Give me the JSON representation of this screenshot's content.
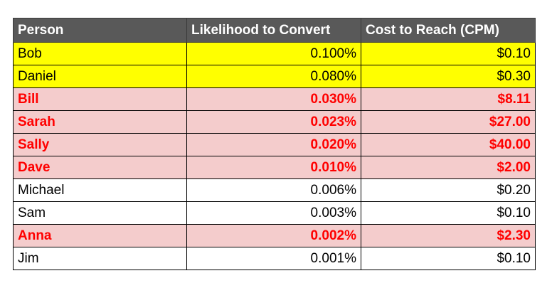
{
  "table": {
    "headers": {
      "person": "Person",
      "likelihood": "Likelihood to Convert",
      "cost": "Cost to Reach (CPM)"
    },
    "rows": [
      {
        "person": "Bob",
        "likelihood": "0.100%",
        "cost": "$0.10",
        "highlight": "yellow"
      },
      {
        "person": "Daniel",
        "likelihood": "0.080%",
        "cost": "$0.30",
        "highlight": "yellow"
      },
      {
        "person": "Bill",
        "likelihood": "0.030%",
        "cost": "$8.11",
        "highlight": "pink"
      },
      {
        "person": "Sarah",
        "likelihood": "0.023%",
        "cost": "$27.00",
        "highlight": "pink"
      },
      {
        "person": "Sally",
        "likelihood": "0.020%",
        "cost": "$40.00",
        "highlight": "pink"
      },
      {
        "person": "Dave",
        "likelihood": "0.010%",
        "cost": "$2.00",
        "highlight": "pink"
      },
      {
        "person": "Michael",
        "likelihood": "0.006%",
        "cost": "$0.20",
        "highlight": "white"
      },
      {
        "person": "Sam",
        "likelihood": "0.003%",
        "cost": "$0.10",
        "highlight": "white"
      },
      {
        "person": "Anna",
        "likelihood": "0.002%",
        "cost": "$2.30",
        "highlight": "pink"
      },
      {
        "person": "Jim",
        "likelihood": "0.001%",
        "cost": "$0.10",
        "highlight": "white"
      }
    ]
  },
  "colors": {
    "header_bg": "#595959",
    "header_text": "#ffffff",
    "yellow_highlight": "#ffff00",
    "pink_highlight": "#f4cccc",
    "pink_text": "#ff0000"
  }
}
